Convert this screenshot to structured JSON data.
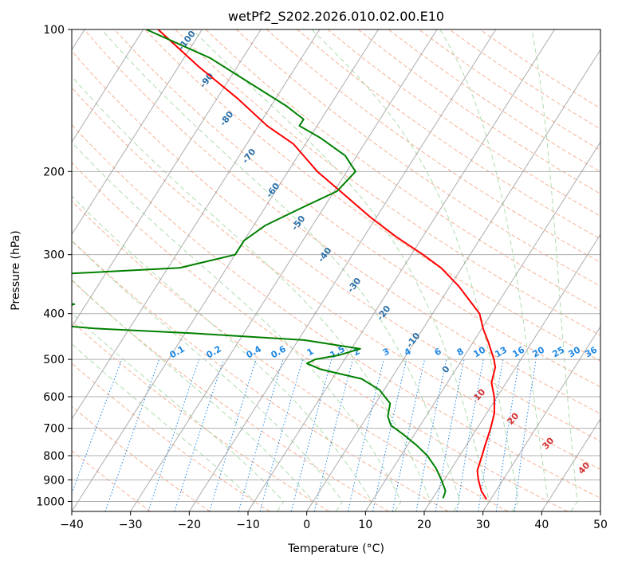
{
  "chart_data": {
    "type": "line",
    "chart_kind": "skew-T log-p diagram",
    "title": "wetPf2_S202.2026.010.02.00.E10",
    "xlabel": "Temperature (°C)",
    "ylabel": "Pressure (hPa)",
    "xlim": [
      -40,
      50
    ],
    "ylim": [
      1050,
      100
    ],
    "y_scale": "log",
    "x_ticks": [
      -40,
      -30,
      -20,
      -10,
      0,
      10,
      20,
      30,
      40,
      50
    ],
    "x_tick_labels": [
      "−40",
      "−30",
      "−20",
      "−10",
      "0",
      "10",
      "20",
      "30",
      "40",
      "50"
    ],
    "y_ticks": [
      100,
      200,
      300,
      400,
      500,
      600,
      700,
      800,
      900,
      1000
    ],
    "y_tick_labels": [
      "100",
      "200",
      "300",
      "400",
      "500",
      "600",
      "700",
      "800",
      "900",
      "1000"
    ],
    "grid": true,
    "colors": {
      "temperature": "#ff0000",
      "dewpoint": "#008000",
      "isotherm": "#999999",
      "dry_adiabat": "#f4a582",
      "moist_adiabat": "#a6d8a6",
      "mixing_ratio": "#1e88e5"
    },
    "series": [
      {
        "style": "red-solid",
        "points": [
          {
            "p": 990,
            "x": 29.3
          },
          {
            "p": 950,
            "x": 27.5
          },
          {
            "p": 900,
            "x": 25.8
          },
          {
            "p": 860,
            "x": 24.6
          },
          {
            "p": 800,
            "x": 23.8
          },
          {
            "p": 760,
            "x": 23.2
          },
          {
            "p": 700,
            "x": 22.3
          },
          {
            "p": 650,
            "x": 21.3
          },
          {
            "p": 600,
            "x": 19.5
          },
          {
            "p": 560,
            "x": 17.5
          },
          {
            "p": 520,
            "x": 16.5
          },
          {
            "p": 500,
            "x": 15.4
          },
          {
            "p": 460,
            "x": 12.6
          },
          {
            "p": 430,
            "x": 10.2
          },
          {
            "p": 400,
            "x": 8.0
          },
          {
            "p": 380,
            "x": 5.5
          },
          {
            "p": 350,
            "x": 1.5
          },
          {
            "p": 320,
            "x": -3.5
          },
          {
            "p": 300,
            "x": -8.0
          },
          {
            "p": 275,
            "x": -14.5
          },
          {
            "p": 250,
            "x": -21.0
          },
          {
            "p": 220,
            "x": -29.0
          },
          {
            "p": 200,
            "x": -35.0
          },
          {
            "p": 175,
            "x": -42.0
          },
          {
            "p": 160,
            "x": -48.5
          },
          {
            "p": 140,
            "x": -56.5
          },
          {
            "p": 120,
            "x": -66.5
          },
          {
            "p": 100,
            "x": -77.5
          }
        ]
      },
      {
        "style": "green-solid",
        "points": [
          {
            "p": 985,
            "x": 21.8
          },
          {
            "p": 950,
            "x": 21.4
          },
          {
            "p": 900,
            "x": 19.5
          },
          {
            "p": 850,
            "x": 17.3
          },
          {
            "p": 800,
            "x": 14.5
          },
          {
            "p": 760,
            "x": 11.5
          },
          {
            "p": 720,
            "x": 8.0
          },
          {
            "p": 690,
            "x": 5.0
          },
          {
            "p": 660,
            "x": 3.5
          },
          {
            "p": 620,
            "x": 2.5
          },
          {
            "p": 580,
            "x": -0.8
          },
          {
            "p": 550,
            "x": -5.0
          },
          {
            "p": 525,
            "x": -13.0
          },
          {
            "p": 510,
            "x": -16.0
          },
          {
            "p": 500,
            "x": -15.0
          },
          {
            "p": 490,
            "x": -11.5
          },
          {
            "p": 475,
            "x": -8.5
          },
          {
            "p": 455,
            "x": -19.0
          },
          {
            "p": 440,
            "x": -39.0
          },
          {
            "p": 430,
            "x": -56.0
          },
          {
            "p": 420,
            "x": -66.0
          },
          {
            "p": 405,
            "x": -77.0
          },
          {
            "p": 395,
            "x": -85.0
          },
          {
            "p": 393,
            "x": -84.0
          },
          {
            "p": 390,
            "x": -64.0
          },
          {
            "p": 382,
            "x": -62.0
          },
          {
            "p": 372,
            "x": -72.0
          },
          {
            "p": 340,
            "x": -83.0
          },
          {
            "p": 330,
            "x": -68.0
          },
          {
            "p": 320,
            "x": -48.0
          },
          {
            "p": 300,
            "x": -40.0
          },
          {
            "p": 280,
            "x": -40.0
          },
          {
            "p": 260,
            "x": -38.0
          },
          {
            "p": 240,
            "x": -34.0
          },
          {
            "p": 220,
            "x": -29.5
          },
          {
            "p": 200,
            "x": -28.5
          },
          {
            "p": 185,
            "x": -32.0
          },
          {
            "p": 170,
            "x": -38.0
          },
          {
            "p": 160,
            "x": -43.0
          },
          {
            "p": 155,
            "x": -43.0
          },
          {
            "p": 145,
            "x": -47.5
          },
          {
            "p": 130,
            "x": -56.0
          },
          {
            "p": 115,
            "x": -65.5
          },
          {
            "p": 100,
            "x": -79.5
          }
        ]
      }
    ],
    "annotations": {
      "dry_adiabat_labels": [
        -100,
        -90,
        -80,
        -70,
        -60,
        -50,
        -40,
        -30,
        -20,
        -10,
        0
      ],
      "moist_adiabat_labels": [
        10,
        20,
        30,
        40
      ],
      "mixing_ratio_labels": [
        "0.1",
        "0.2",
        "0.4",
        "0.6",
        "1",
        "1.5",
        "2",
        "3",
        "4",
        "6",
        "8",
        "10",
        "13",
        "16",
        "20",
        "25",
        "30",
        "36"
      ]
    }
  }
}
